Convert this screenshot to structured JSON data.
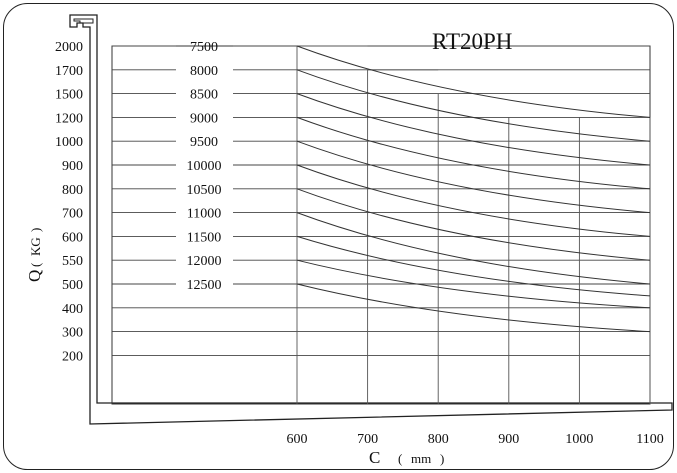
{
  "chart_data": {
    "type": "line",
    "title": "RT20PH",
    "xlabel": "C",
    "xlabel_unit": "mm",
    "ylabel": "Q",
    "ylabel_unit": "KG",
    "x_ticks": [
      "600",
      "700",
      "800",
      "900",
      "1000",
      "1100"
    ],
    "y_ticks": [
      "2000",
      "1700",
      "1500",
      "1200",
      "1000",
      "900",
      "800",
      "700",
      "600",
      "550",
      "500",
      "400",
      "300",
      "200"
    ],
    "x_range": [
      600,
      1100
    ],
    "grid": true,
    "step_boundary": [
      {
        "x": 600,
        "y_level": "2000"
      },
      {
        "x": 700,
        "y_level": "1700"
      },
      {
        "x": 800,
        "y_level": "1500"
      },
      {
        "x": 900,
        "y_level": "1200"
      },
      {
        "x": 1000,
        "y_level": "1200"
      }
    ],
    "series": [
      {
        "name": "7500",
        "start_level": "2000",
        "end_level": "1200"
      },
      {
        "name": "8000",
        "start_level": "1700",
        "end_level": "1000"
      },
      {
        "name": "8500",
        "start_level": "1500",
        "end_level": "900"
      },
      {
        "name": "9000",
        "start_level": "1200",
        "end_level": "800"
      },
      {
        "name": "9500",
        "start_level": "1000",
        "end_level": "700"
      },
      {
        "name": "10000",
        "start_level": "900",
        "end_level": "600"
      },
      {
        "name": "10500",
        "start_level": "800",
        "end_level": "550"
      },
      {
        "name": "11000",
        "start_level": "700",
        "end_level": "500"
      },
      {
        "name": "11500",
        "start_level": "600",
        "end_level": "450"
      },
      {
        "name": "12000",
        "start_level": "550",
        "end_level": "400"
      },
      {
        "name": "12500",
        "start_level": "500",
        "end_level": "300"
      }
    ]
  }
}
